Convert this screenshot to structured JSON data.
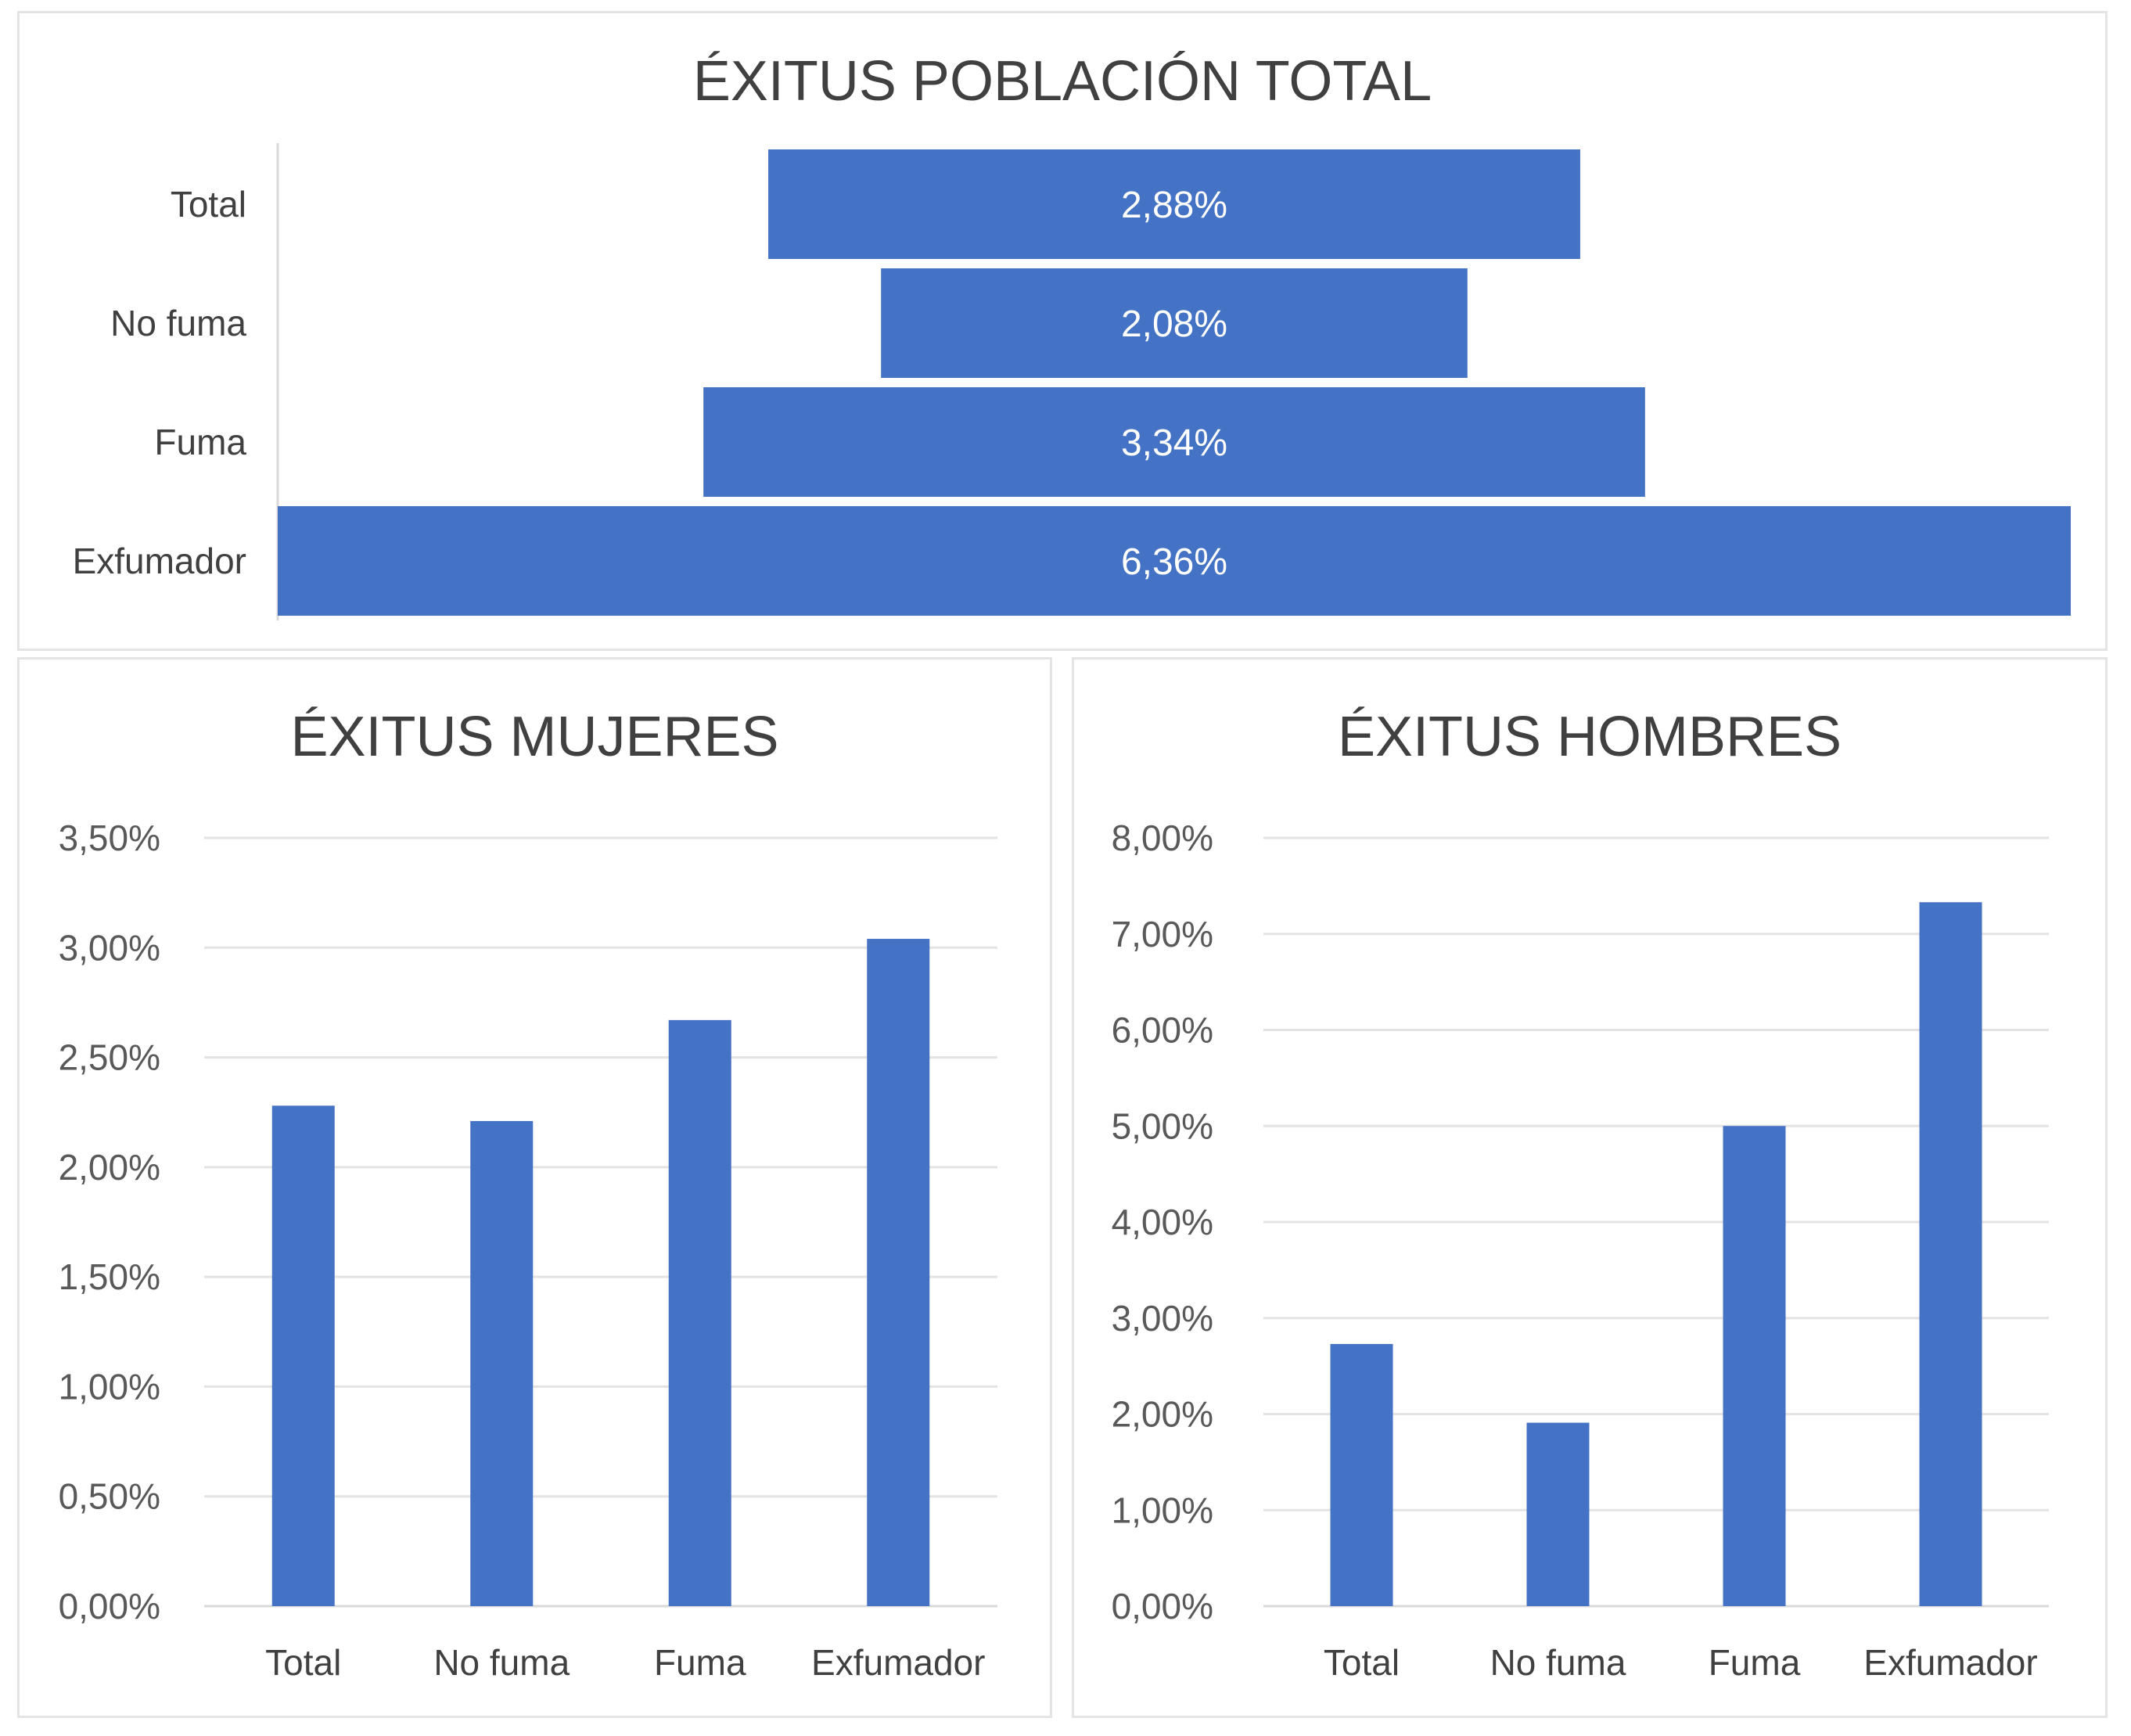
{
  "bar_color": "#4472c4",
  "chart_data": [
    {
      "type": "bar",
      "orientation": "horizontal-funnel",
      "title": "ÉXITUS POBLACIÓN TOTAL",
      "categories": [
        "Total",
        "No fuma",
        "Fuma",
        "Exfumador"
      ],
      "values": [
        2.88,
        2.08,
        3.34,
        6.36
      ],
      "data_labels": [
        "2,88%",
        "2,08%",
        "3,34%",
        "6,36%"
      ],
      "grid": false,
      "legend": "none"
    },
    {
      "type": "bar",
      "title": "ÉXITUS MUJERES",
      "categories": [
        "Total",
        "No fuma",
        "Fuma",
        "Exfumador"
      ],
      "values": [
        2.28,
        2.21,
        2.67,
        3.04
      ],
      "ylim": [
        0,
        3.5
      ],
      "yticks": [
        "0,00%",
        "0,50%",
        "1,00%",
        "1,50%",
        "2,00%",
        "2,50%",
        "3,00%",
        "3,50%"
      ],
      "grid": true,
      "legend": "none"
    },
    {
      "type": "bar",
      "title": "ÉXITUS HOMBRES",
      "categories": [
        "Total",
        "No fuma",
        "Fuma",
        "Exfumador"
      ],
      "values": [
        2.73,
        1.91,
        5.0,
        7.33
      ],
      "ylim": [
        0,
        8
      ],
      "yticks": [
        "0,00%",
        "1,00%",
        "2,00%",
        "3,00%",
        "4,00%",
        "5,00%",
        "6,00%",
        "7,00%",
        "8,00%"
      ],
      "grid": true,
      "legend": "none"
    }
  ]
}
